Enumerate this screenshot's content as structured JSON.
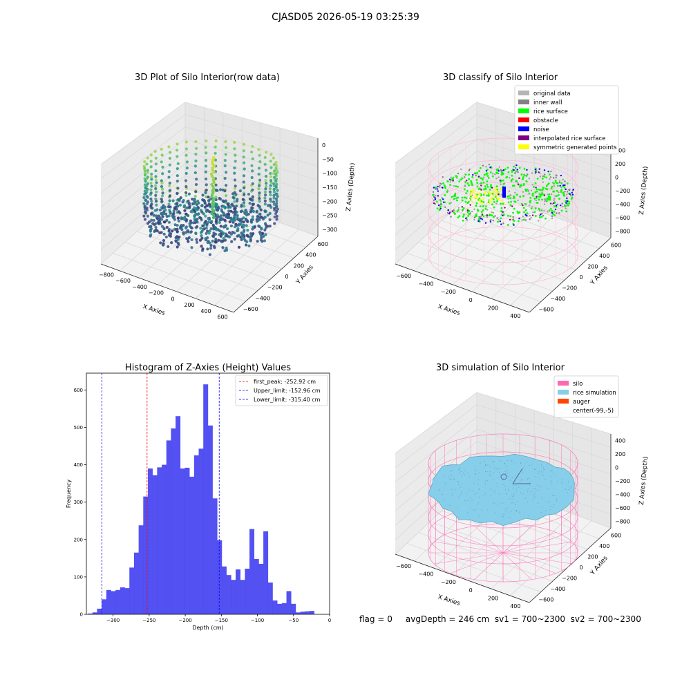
{
  "figure": {
    "suptitle": "CJASD05 2026-05-19 03:25:39",
    "status_line": "flag = 0     avgDepth = 246 cm  sv1 = 700~2300  sv2 = 700~2300"
  },
  "colors": {
    "histogram_bar": "#4a48f0",
    "first_peak_line": "#ff0000",
    "limit_line": "#0000ff",
    "silo_wireframe": "#ff69b4",
    "rice_simulation": "#87ceeb",
    "auger": "#ff4500",
    "pane_face": "#f2f2f2",
    "grid": "#d8d8d8"
  },
  "chart_data": [
    {
      "id": "raw",
      "type": "scatter",
      "is_3d": true,
      "title": "3D Plot of Silo Interior(row data)",
      "xlabel": "X Axies",
      "ylabel": "Y Axies",
      "zlabel": "Z Axies (Depth)",
      "xticks": [
        "−800",
        "−600",
        "−400",
        "−200",
        "0",
        "200",
        "400",
        "600"
      ],
      "yticks": [
        "−600",
        "−400",
        "−200",
        "0",
        "200",
        "400",
        "600"
      ],
      "zticks": [
        "0",
        "−50",
        "−100",
        "−150",
        "−200",
        "−250",
        "−300"
      ],
      "colormap": "viridis",
      "grid": true
    },
    {
      "id": "classify",
      "type": "scatter",
      "is_3d": true,
      "title": "3D classify of Silo Interior",
      "xlabel": "X Axies",
      "ylabel": "Y Axies",
      "zlabel": "Z Axies (Depth)",
      "xticks": [
        "−600",
        "−400",
        "−200",
        "0",
        "200",
        "400"
      ],
      "yticks": [
        "−600",
        "−400",
        "−200",
        "0",
        "200",
        "400",
        "600"
      ],
      "zticks": [
        "400",
        "200",
        "0",
        "−200",
        "−400",
        "−600",
        "−800"
      ],
      "legend_position": "top-right",
      "legend": [
        {
          "label": "original data",
          "color": "#b4b4b4"
        },
        {
          "label": "inner wall",
          "color": "#808080"
        },
        {
          "label": "rice surface",
          "color": "#00ff00"
        },
        {
          "label": "obstacle",
          "color": "#ff0000"
        },
        {
          "label": "noise",
          "color": "#0000ff"
        },
        {
          "label": "interpolated rice surface",
          "color": "#800080"
        },
        {
          "label": "symmetric generated points",
          "color": "#ffff00"
        }
      ],
      "grid": true
    },
    {
      "id": "histogram",
      "type": "bar",
      "title": "Histogram of Z-Axies (Height) Values",
      "xlabel": "Depth (cm)",
      "ylabel": "Frequency",
      "xlim": [
        -337,
        0
      ],
      "ylim": [
        0,
        645
      ],
      "xticks": [
        -300,
        -250,
        -200,
        -150,
        -100,
        -50,
        0
      ],
      "yticks": [
        0,
        100,
        200,
        300,
        400,
        500,
        600
      ],
      "bin_start": -335,
      "bin_width": 6.4,
      "values": [
        2,
        5,
        15,
        40,
        65,
        62,
        65,
        72,
        70,
        125,
        165,
        238,
        315,
        390,
        372,
        393,
        400,
        465,
        497,
        530,
        390,
        392,
        368,
        425,
        443,
        615,
        505,
        310,
        198,
        128,
        105,
        92,
        120,
        92,
        122,
        228,
        148,
        135,
        222,
        85,
        37,
        28,
        30,
        62,
        28,
        5,
        7,
        8,
        9
      ],
      "vlines": [
        {
          "label": "first_peak: -252.92 cm",
          "x": -252.92,
          "color": "#ff0000"
        },
        {
          "label": "Upper_limit: -152.96 cm",
          "x": -152.96,
          "color": "#0000ff"
        },
        {
          "label": "Lower_limit: -315.40 cm",
          "x": -315.4,
          "color": "#0000ff"
        }
      ],
      "legend_position": "top-right",
      "grid": false
    },
    {
      "id": "simulation",
      "type": "area",
      "is_3d": true,
      "title": "3D simulation of Silo Interior",
      "xlabel": "X Axies",
      "ylabel": "Y Axies",
      "zlabel": "Z Axies (Depth)",
      "xticks": [
        "−600",
        "−400",
        "−200",
        "0",
        "200",
        "400"
      ],
      "yticks": [
        "−600",
        "−400",
        "−200",
        "0",
        "200",
        "400",
        "600"
      ],
      "zticks": [
        "400",
        "200",
        "0",
        "−200",
        "−400",
        "−600",
        "−800"
      ],
      "legend_position": "top-right",
      "legend": [
        {
          "label": "silo",
          "color": "#ff69b4"
        },
        {
          "label": "rice simulation",
          "color": "#87ceeb"
        },
        {
          "label": "auger",
          "color": "#ff4500"
        },
        {
          "label": "center(-99,-5)",
          "color": ""
        }
      ],
      "grid": true
    }
  ]
}
